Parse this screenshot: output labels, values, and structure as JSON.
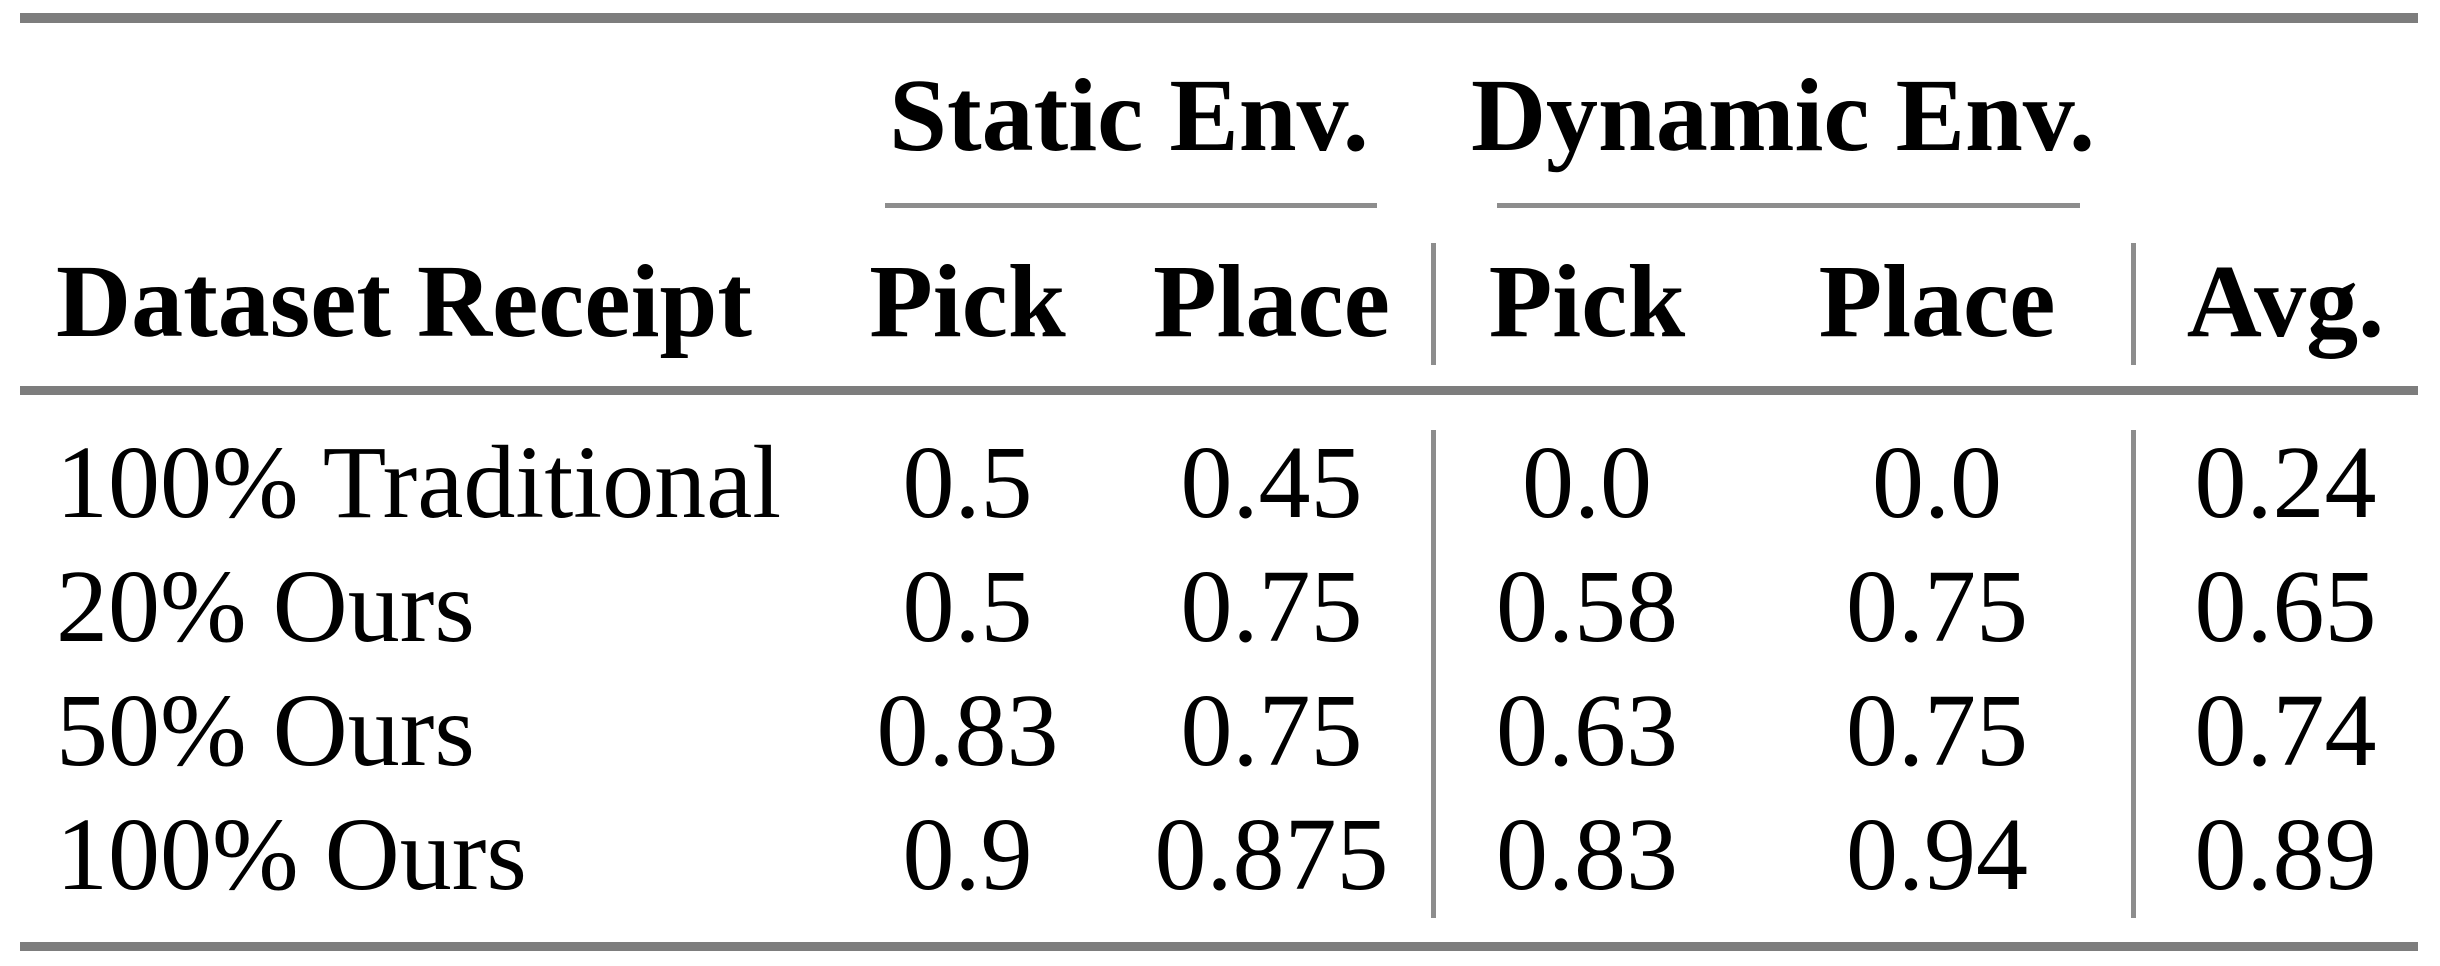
{
  "table": {
    "groups": [
      {
        "label": "Static Env."
      },
      {
        "label": "Dynamic Env."
      }
    ],
    "header": {
      "dataset": "Dataset Receipt",
      "static_pick": "Pick",
      "static_place": "Place",
      "dynamic_pick": "Pick",
      "dynamic_place": "Place",
      "avg": "Avg."
    },
    "rows": [
      {
        "dataset": "100% Traditional",
        "static_pick": "0.5",
        "static_place": "0.45",
        "dynamic_pick": "0.0",
        "dynamic_place": "0.0",
        "avg": "0.24"
      },
      {
        "dataset": "20% Ours",
        "static_pick": "0.5",
        "static_place": "0.75",
        "dynamic_pick": "0.58",
        "dynamic_place": "0.75",
        "avg": "0.65"
      },
      {
        "dataset": "50% Ours",
        "static_pick": "0.83",
        "static_place": "0.75",
        "dynamic_pick": "0.63",
        "dynamic_place": "0.75",
        "avg": "0.74"
      },
      {
        "dataset": "100% Ours",
        "static_pick": "0.9",
        "static_place": "0.875",
        "dynamic_pick": "0.83",
        "dynamic_place": "0.94",
        "avg": "0.89"
      }
    ],
    "colors": {
      "thick_rule": "#7d7d7d",
      "thin_rule": "#8d8d8d",
      "text": "#000000",
      "background": "#ffffff"
    }
  },
  "chart_data": {
    "type": "table",
    "column_groups": [
      {
        "label": "Static Env.",
        "columns": [
          "Pick",
          "Place"
        ]
      },
      {
        "label": "Dynamic Env.",
        "columns": [
          "Pick",
          "Place"
        ]
      }
    ],
    "columns": [
      "Dataset Receipt",
      "Static Env. Pick",
      "Static Env. Place",
      "Dynamic Env. Pick",
      "Dynamic Env. Place",
      "Avg."
    ],
    "rows": [
      [
        "100% Traditional",
        0.5,
        0.45,
        0.0,
        0.0,
        0.24
      ],
      [
        "20% Ours",
        0.5,
        0.75,
        0.58,
        0.75,
        0.65
      ],
      [
        "50% Ours",
        0.83,
        0.75,
        0.63,
        0.75,
        0.74
      ],
      [
        "100% Ours",
        0.9,
        0.875,
        0.83,
        0.94,
        0.89
      ]
    ]
  }
}
